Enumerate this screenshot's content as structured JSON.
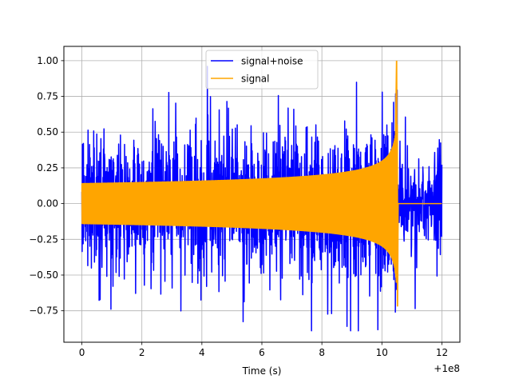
{
  "chart_data": {
    "type": "line",
    "xlabel": "Time (s)",
    "ylabel": "",
    "x_offset_label": "+1e8",
    "xlim": [
      -0.6,
      12.6
    ],
    "ylim": [
      -0.97,
      1.1
    ],
    "x_ticks": [
      0,
      2,
      4,
      6,
      8,
      10,
      12
    ],
    "x_tick_labels": [
      "0",
      "2",
      "4",
      "6",
      "8",
      "10",
      "12"
    ],
    "y_ticks": [
      -0.75,
      -0.5,
      -0.25,
      0.0,
      0.25,
      0.5,
      0.75,
      1.0
    ],
    "y_tick_labels": [
      "−0.75",
      "−0.50",
      "−0.25",
      "0.00",
      "0.25",
      "0.50",
      "0.75",
      "1.00"
    ],
    "grid": true,
    "legend_position": "top-center",
    "series": [
      {
        "name": "signal+noise",
        "color": "#0000ff",
        "x_range": [
          0,
          12
        ],
        "noise_envelope_max": 0.96,
        "noise_envelope_min": -0.89
      },
      {
        "name": "signal",
        "color": "#ffa500",
        "x_range": [
          0,
          12
        ],
        "merger_time": 10.52,
        "initial_amplitude": 0.14,
        "peak_value": 1.0,
        "min_value": -0.72,
        "post_merger_value": 0.0
      }
    ]
  }
}
